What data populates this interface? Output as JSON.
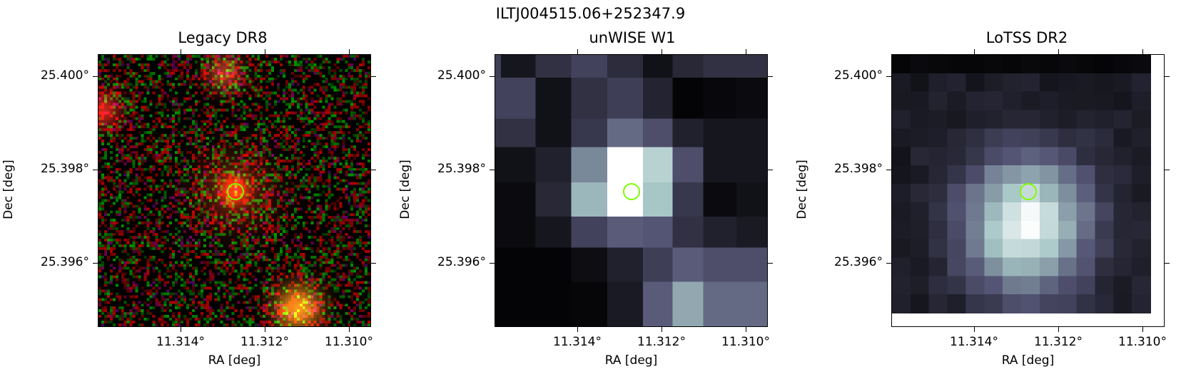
{
  "figure_title": "ILTJ004515.06+252347.9",
  "panels": [
    {
      "title": "Legacy DR8",
      "xlabel": "RA [deg]",
      "ylabel": "Dec [deg]",
      "xticks": [
        "11.314°",
        "11.312°",
        "11.310°"
      ],
      "yticks": [
        "25.400°",
        "25.398°",
        "25.396°"
      ]
    },
    {
      "title": "unWISE W1",
      "xlabel": "RA [deg]",
      "ylabel": "Dec [deg]",
      "xticks": [
        "11.314°",
        "11.312°",
        "11.310°"
      ],
      "yticks": [
        "25.400°",
        "25.398°",
        "25.396°"
      ]
    },
    {
      "title": "LoTSS DR2",
      "xlabel": "RA [deg]",
      "ylabel": "Dec [deg]",
      "xticks": [
        "11.314°",
        "11.312°",
        "11.310°"
      ],
      "yticks": [
        "25.400°",
        "25.398°",
        "25.396°"
      ]
    }
  ],
  "marker_color": "#7cfc00"
}
